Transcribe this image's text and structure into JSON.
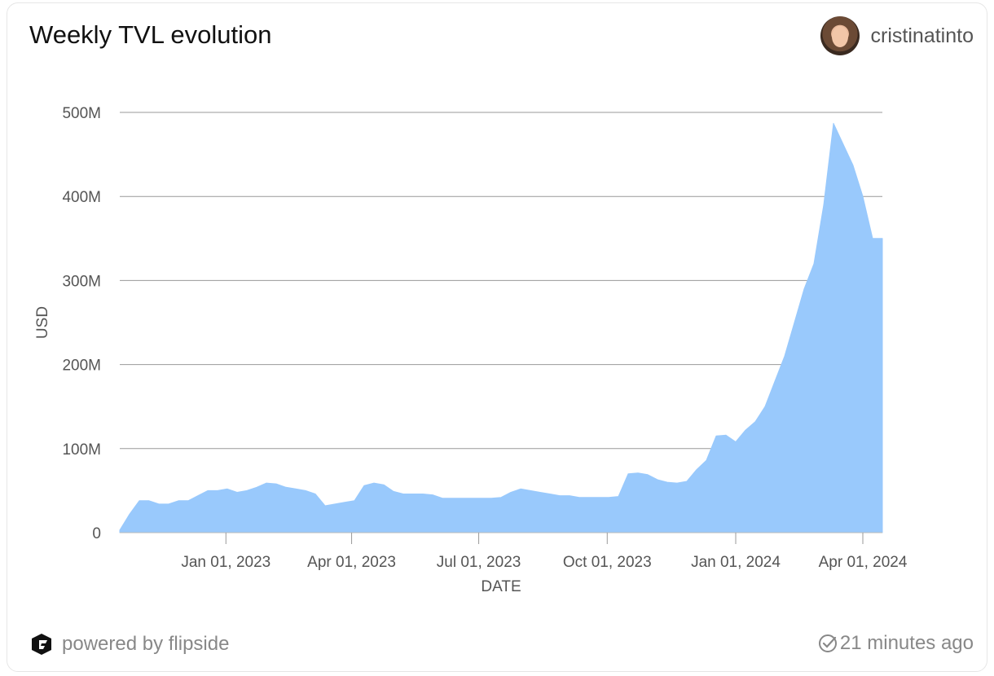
{
  "header": {
    "title": "Weekly TVL evolution",
    "username": "cristinatinto"
  },
  "footer": {
    "powered_by": "powered by flipside",
    "updated": "21 minutes ago"
  },
  "colors": {
    "area": "#99c9fc",
    "grid": "#999999",
    "text": "#555555"
  },
  "chart_data": {
    "type": "area",
    "title": "Weekly TVL evolution",
    "xlabel": "DATE",
    "ylabel": "USD",
    "ylim": [
      0,
      500000000
    ],
    "yticks": [
      0,
      100000000,
      200000000,
      300000000,
      400000000,
      500000000
    ],
    "ytick_labels": [
      "0",
      "100M",
      "200M",
      "300M",
      "400M",
      "500M"
    ],
    "xlim": [
      "2022-10-17",
      "2024-04-15"
    ],
    "xticks": [
      "2023-01-01",
      "2023-04-01",
      "2023-07-01",
      "2023-10-01",
      "2024-01-01",
      "2024-04-01"
    ],
    "xtick_labels": [
      "Jan 01, 2023",
      "Apr 01, 2023",
      "Jul 01, 2023",
      "Oct 01, 2023",
      "Jan 01, 2024",
      "Apr 01, 2024"
    ],
    "series": [
      {
        "name": "TVL",
        "x": [
          "2022-10-17",
          "2022-10-24",
          "2022-10-31",
          "2022-11-07",
          "2022-11-14",
          "2022-11-21",
          "2022-11-28",
          "2022-12-05",
          "2022-12-12",
          "2022-12-19",
          "2022-12-26",
          "2023-01-02",
          "2023-01-09",
          "2023-01-16",
          "2023-01-23",
          "2023-01-30",
          "2023-02-06",
          "2023-02-13",
          "2023-02-20",
          "2023-02-27",
          "2023-03-06",
          "2023-03-13",
          "2023-03-20",
          "2023-03-27",
          "2023-04-03",
          "2023-04-10",
          "2023-04-17",
          "2023-04-24",
          "2023-05-01",
          "2023-05-08",
          "2023-05-15",
          "2023-05-22",
          "2023-05-29",
          "2023-06-05",
          "2023-06-12",
          "2023-06-19",
          "2023-06-26",
          "2023-07-03",
          "2023-07-10",
          "2023-07-17",
          "2023-07-24",
          "2023-07-31",
          "2023-08-07",
          "2023-08-14",
          "2023-08-21",
          "2023-08-28",
          "2023-09-04",
          "2023-09-11",
          "2023-09-18",
          "2023-09-25",
          "2023-10-02",
          "2023-10-09",
          "2023-10-16",
          "2023-10-23",
          "2023-10-30",
          "2023-11-06",
          "2023-11-13",
          "2023-11-20",
          "2023-11-27",
          "2023-12-04",
          "2023-12-11",
          "2023-12-18",
          "2023-12-25",
          "2024-01-01",
          "2024-01-08",
          "2024-01-15",
          "2024-01-22",
          "2024-01-29",
          "2024-02-05",
          "2024-02-12",
          "2024-02-19",
          "2024-02-26",
          "2024-03-04",
          "2024-03-11",
          "2024-03-18",
          "2024-03-25",
          "2024-04-01",
          "2024-04-08",
          "2024-04-15"
        ],
        "values": [
          3000000,
          22000000,
          38000000,
          38000000,
          34000000,
          34000000,
          38000000,
          38000000,
          44000000,
          50000000,
          50000000,
          52000000,
          48000000,
          50000000,
          54000000,
          59000000,
          58000000,
          54000000,
          52000000,
          50000000,
          46000000,
          32000000,
          34000000,
          36000000,
          38000000,
          56000000,
          59000000,
          57000000,
          49000000,
          46000000,
          46000000,
          46000000,
          45000000,
          41000000,
          41000000,
          41000000,
          41000000,
          41000000,
          41000000,
          42000000,
          48000000,
          52000000,
          50000000,
          48000000,
          46000000,
          44000000,
          44000000,
          42000000,
          42000000,
          42000000,
          42000000,
          43000000,
          70000000,
          71000000,
          69000000,
          63000000,
          60000000,
          59000000,
          61000000,
          75000000,
          86000000,
          115000000,
          116000000,
          108000000,
          122000000,
          132000000,
          150000000,
          180000000,
          210000000,
          250000000,
          290000000,
          320000000,
          390000000,
          487000000,
          462000000,
          437000000,
          400000000,
          350000000,
          350000000
        ]
      }
    ]
  }
}
